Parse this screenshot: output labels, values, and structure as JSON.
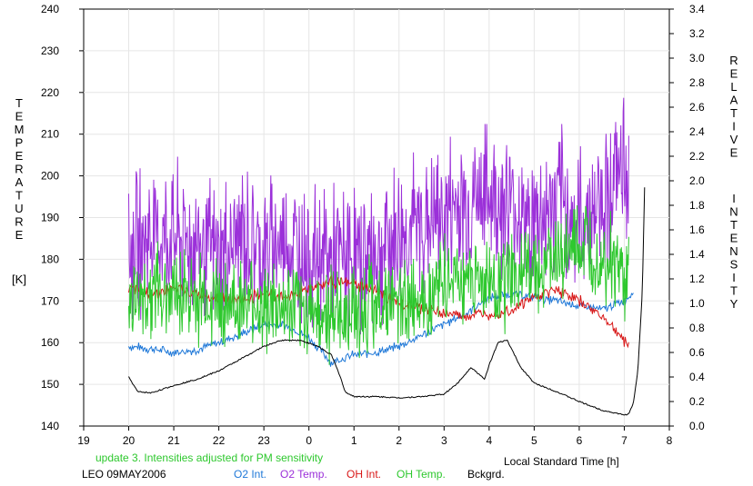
{
  "chart_data": {
    "type": "line",
    "xlabel": "Local Standard Time [h]",
    "ylabel_left_letters": [
      "T",
      "E",
      "M",
      "P",
      "E",
      "R",
      "A",
      "T",
      "U",
      "R",
      "E"
    ],
    "ylabel_left_unit": "[K]",
    "ylabel_right_word1": [
      "R",
      "E",
      "L",
      "A",
      "T",
      "I",
      "V",
      "E"
    ],
    "ylabel_right_word2": [
      "I",
      "N",
      "T",
      "E",
      "N",
      "S",
      "I",
      "T",
      "Y"
    ],
    "x_ticks": [
      {
        "v": 19,
        "label": "19"
      },
      {
        "v": 20,
        "label": "20"
      },
      {
        "v": 21,
        "label": "21"
      },
      {
        "v": 22,
        "label": "22"
      },
      {
        "v": 23,
        "label": "23"
      },
      {
        "v": 24,
        "label": "0"
      },
      {
        "v": 25,
        "label": "1"
      },
      {
        "v": 26,
        "label": "2"
      },
      {
        "v": 27,
        "label": "3"
      },
      {
        "v": 28,
        "label": "4"
      },
      {
        "v": 29,
        "label": "5"
      },
      {
        "v": 30,
        "label": "6"
      },
      {
        "v": 31,
        "label": "7"
      },
      {
        "v": 32,
        "label": "8"
      }
    ],
    "xlim": [
      19,
      32
    ],
    "ylim_left": [
      140,
      240
    ],
    "ylim_right": [
      0,
      3.4
    ],
    "y_ticks_left": [
      "140",
      "150",
      "160",
      "170",
      "180",
      "190",
      "200",
      "210",
      "220",
      "230",
      "240"
    ],
    "y_ticks_right": [
      "0.0",
      "0.2",
      "0.4",
      "0.6",
      "0.8",
      "1.0",
      "1.2",
      "1.4",
      "1.6",
      "1.8",
      "2.0",
      "2.2",
      "2.4",
      "2.6",
      "2.8",
      "3.0",
      "3.2",
      "3.4"
    ],
    "annotation": "update 3. Intensities adjusted for PM sensitivity",
    "station": "LEO 09MAY2006",
    "series": [
      {
        "name": "O2 Int.",
        "color": "#1f78d8",
        "axis": "right",
        "x": [
          20.0,
          20.5,
          21.0,
          21.5,
          22.0,
          22.5,
          23.0,
          23.5,
          24.0,
          24.5,
          25.0,
          25.5,
          26.0,
          26.5,
          27.0,
          27.5,
          28.0,
          28.5,
          29.0,
          29.5,
          30.0,
          30.5,
          31.0,
          31.2
        ],
        "y": [
          0.65,
          0.63,
          0.6,
          0.62,
          0.68,
          0.75,
          0.83,
          0.82,
          0.72,
          0.52,
          0.58,
          0.6,
          0.65,
          0.74,
          0.83,
          0.92,
          1.05,
          1.08,
          1.05,
          1.02,
          0.98,
          0.95,
          1.02,
          1.1
        ]
      },
      {
        "name": "O2 Temp.",
        "color": "#9b30d9",
        "axis": "left",
        "x": [
          20.0,
          20.5,
          21.0,
          21.5,
          22.0,
          22.5,
          23.0,
          23.5,
          24.0,
          24.5,
          25.0,
          25.5,
          26.0,
          26.5,
          27.0,
          27.5,
          28.0,
          28.5,
          29.0,
          29.5,
          30.0,
          30.5,
          31.0,
          31.1
        ],
        "y": [
          182,
          186,
          185,
          184,
          180,
          186,
          182,
          184,
          181,
          180,
          180,
          182,
          186,
          188,
          191,
          194,
          195,
          193,
          188,
          194,
          188,
          195,
          202,
          199
        ]
      },
      {
        "name": "OH Int.",
        "color": "#d81818",
        "axis": "right",
        "x": [
          20.0,
          20.5,
          21.0,
          21.5,
          22.0,
          22.5,
          23.0,
          23.5,
          24.0,
          24.5,
          25.0,
          25.5,
          26.0,
          26.5,
          27.0,
          27.5,
          28.0,
          28.5,
          29.0,
          29.5,
          30.0,
          30.5,
          31.0,
          31.1
        ],
        "y": [
          1.12,
          1.08,
          1.12,
          1.08,
          1.05,
          1.02,
          1.08,
          1.05,
          1.12,
          1.18,
          1.15,
          1.1,
          1.0,
          0.96,
          0.92,
          0.9,
          0.92,
          0.95,
          1.05,
          1.12,
          1.02,
          0.9,
          0.7,
          0.65
        ]
      },
      {
        "name": "OH Temp.",
        "color": "#2ec82e",
        "axis": "left",
        "x": [
          20.0,
          20.5,
          21.0,
          21.5,
          22.0,
          22.5,
          23.0,
          23.5,
          24.0,
          24.5,
          25.0,
          25.5,
          26.0,
          26.5,
          27.0,
          27.5,
          28.0,
          28.5,
          29.0,
          29.5,
          30.0,
          30.5,
          31.0,
          31.1
        ],
        "y": [
          170,
          172,
          173,
          170,
          171,
          168,
          169,
          167,
          168,
          166,
          168,
          170,
          169,
          172,
          174,
          176,
          174,
          175,
          178,
          180,
          182,
          181,
          176,
          174
        ]
      },
      {
        "name": "Bckgrd.",
        "color": "#000000",
        "axis": "right",
        "x": [
          20.0,
          20.2,
          20.5,
          21.0,
          21.5,
          22.0,
          22.5,
          23.0,
          23.4,
          23.8,
          24.2,
          24.5,
          24.7,
          24.8,
          25.0,
          25.5,
          26.0,
          26.5,
          27.0,
          27.3,
          27.6,
          27.9,
          28.0,
          28.2,
          28.4,
          28.7,
          29.0,
          29.5,
          30.0,
          30.5,
          31.0,
          31.1,
          31.2,
          31.3,
          31.4,
          31.45
        ],
        "y": [
          0.4,
          0.28,
          0.27,
          0.33,
          0.38,
          0.45,
          0.55,
          0.65,
          0.7,
          0.7,
          0.65,
          0.58,
          0.4,
          0.28,
          0.24,
          0.24,
          0.23,
          0.24,
          0.26,
          0.35,
          0.48,
          0.38,
          0.5,
          0.68,
          0.7,
          0.48,
          0.35,
          0.28,
          0.2,
          0.13,
          0.09,
          0.1,
          0.18,
          0.45,
          1.1,
          1.95
        ]
      }
    ]
  }
}
